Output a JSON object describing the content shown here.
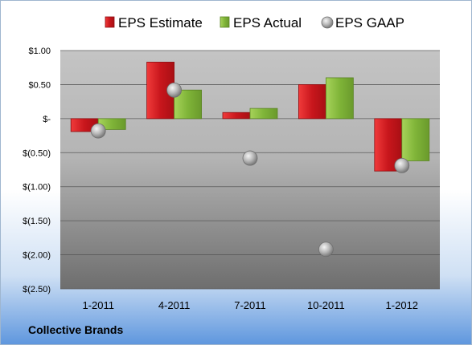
{
  "chart_data": {
    "type": "bar",
    "categories": [
      "1-2011",
      "4-2011",
      "7-2011",
      "10-2011",
      "1-2012"
    ],
    "series": [
      {
        "name": "EPS Estimate",
        "kind": "bar",
        "color": "#e21b23",
        "values": [
          -0.19,
          0.83,
          0.09,
          0.5,
          -0.77
        ]
      },
      {
        "name": "EPS Actual",
        "kind": "bar",
        "color": "#8cc63f",
        "values": [
          -0.16,
          0.42,
          0.15,
          0.6,
          -0.62
        ]
      },
      {
        "name": "EPS GAAP",
        "kind": "marker",
        "color": "#b9b9b9",
        "values": [
          -0.18,
          0.42,
          -0.58,
          -1.92,
          -0.69
        ]
      }
    ],
    "ylim": [
      -2.5,
      1.0
    ],
    "yticks": [
      1.0,
      0.5,
      0.0,
      -0.5,
      -1.0,
      -1.5,
      -2.0,
      -2.5
    ],
    "ytick_labels": [
      "$1.00",
      "$0.50",
      "$-",
      "$(0.50)",
      "$(1.00)",
      "$(1.50)",
      "$(2.00)",
      "$(2.50)"
    ],
    "grid": true,
    "legend_position": "top"
  },
  "company_name": "Collective Brands"
}
